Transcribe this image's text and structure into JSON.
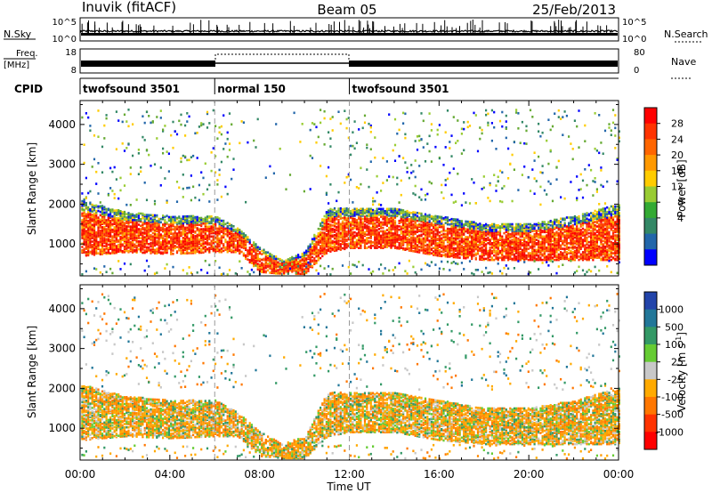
{
  "header": {
    "station": "Inuvik (fitACF)",
    "beam": "Beam 05",
    "date": "25/Feb/2013"
  },
  "strip": {
    "nsky_label": "N.Sky",
    "nsky_ticks": [
      "10^5",
      "10^0"
    ],
    "nsearch_label": "N.Search",
    "nsearch_ticks": [
      "10^5",
      "10^0"
    ],
    "freq_label": "Freq.",
    "freq_unit": "[MHz]",
    "freq_ticks": [
      "18",
      "8"
    ],
    "nave_label": "Nave",
    "nave_ticks": [
      "80",
      "0"
    ],
    "cpid_label": "CPID"
  },
  "modes": [
    {
      "label": "twofsound 3501",
      "start": 0,
      "end": 6
    },
    {
      "label": "normal 150",
      "start": 6,
      "end": 12
    },
    {
      "label": "twofsound 3501",
      "start": 12,
      "end": 24
    }
  ],
  "chart_data": [
    {
      "type": "heatmap",
      "name": "power",
      "ylabel": "Slant Range [km]",
      "yticks": [
        1000,
        2000,
        3000,
        4000
      ],
      "ylim": [
        200,
        4600
      ],
      "xlim": [
        0,
        24
      ],
      "colorbar_label": "Power [dB]",
      "colorbar_ticks": [
        "28",
        "24",
        "20",
        "16",
        "12",
        "8",
        "4"
      ],
      "colorbar_colors": [
        "#ff0000",
        "#ff3300",
        "#ff6600",
        "#ff9900",
        "#ffcc00",
        "#99cc33",
        "#33aa33",
        "#338866",
        "#2266aa",
        "#0000ff"
      ],
      "main_band": [
        {
          "t": 0,
          "lo": 700,
          "hi": 2100
        },
        {
          "t": 2,
          "lo": 800,
          "hi": 1800
        },
        {
          "t": 4,
          "lo": 750,
          "hi": 1700
        },
        {
          "t": 6,
          "lo": 800,
          "hi": 1700
        },
        {
          "t": 7,
          "lo": 800,
          "hi": 1400
        },
        {
          "t": 8,
          "lo": 300,
          "hi": 900
        },
        {
          "t": 9,
          "lo": 250,
          "hi": 600
        },
        {
          "t": 10,
          "lo": 250,
          "hi": 800
        },
        {
          "t": 11,
          "lo": 800,
          "hi": 1900
        },
        {
          "t": 12,
          "lo": 900,
          "hi": 1900
        },
        {
          "t": 14,
          "lo": 900,
          "hi": 1900
        },
        {
          "t": 16,
          "lo": 700,
          "hi": 1700
        },
        {
          "t": 18,
          "lo": 600,
          "hi": 1500
        },
        {
          "t": 20,
          "lo": 600,
          "hi": 1500
        },
        {
          "t": 22,
          "lo": 600,
          "hi": 1700
        },
        {
          "t": 24,
          "lo": 600,
          "hi": 2000
        }
      ]
    },
    {
      "type": "heatmap",
      "name": "velocity",
      "ylabel": "Slant Range [km]",
      "yticks": [
        1000,
        2000,
        3000,
        4000
      ],
      "ylim": [
        200,
        4600
      ],
      "xlabel": "Time UT",
      "xticks": [
        "00:00",
        "04:00",
        "08:00",
        "12:00",
        "16:00",
        "20:00",
        "00:00"
      ],
      "xlim": [
        0,
        24
      ],
      "colorbar_label": "Velocity [m s",
      "colorbar_label_sup": "-1",
      "colorbar_label_end": "]",
      "colorbar_ticks": [
        "1000",
        "500",
        "100",
        "25",
        "-25",
        "-100",
        "-500",
        "-1000"
      ],
      "colorbar_colors": [
        "#2244aa",
        "#227799",
        "#339966",
        "#66cc33",
        "#c8c8c8",
        "#ffaa00",
        "#ff7700",
        "#ff3300",
        "#ff0000"
      ]
    }
  ]
}
